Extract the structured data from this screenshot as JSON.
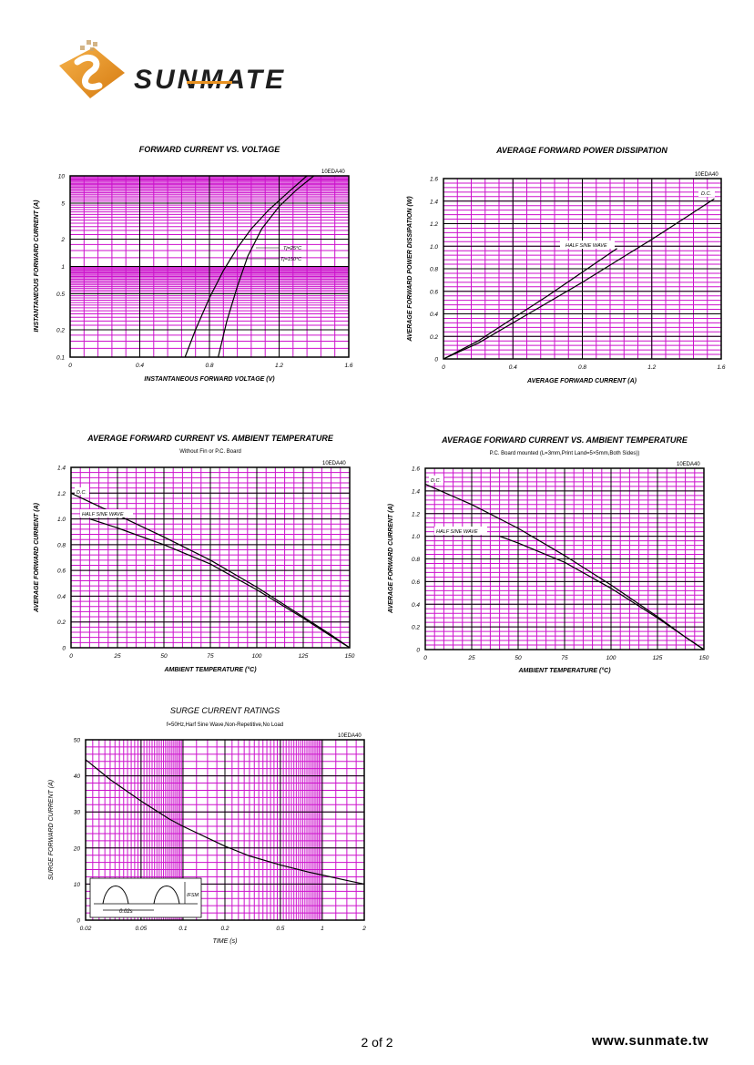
{
  "brand": {
    "name": "SUNMATE",
    "colors": {
      "orange": "#e89120",
      "dark": "#1e1e1e"
    }
  },
  "footer": {
    "page": "2 of 2",
    "site": "www.sunmate.tw"
  },
  "colors": {
    "grid": "#cc11cc",
    "major": "#000000",
    "curve": "#000000"
  },
  "chart_data": [
    {
      "type": "line",
      "title": "FORWARD CURRENT VS. VOLTAGE",
      "subtitle": "",
      "part": "10EDA40",
      "xlabel": "INSTANTANEOUS FORWARD VOLTAGE (V)",
      "ylabel": "INSTANTANEOUS FORWARD CURRENT (A)",
      "xscale": "linear",
      "yscale": "log",
      "xlim": [
        0,
        1.6
      ],
      "ylim": [
        0.1,
        10
      ],
      "xticks": [
        0,
        0.4,
        0.8,
        1.2,
        1.6
      ],
      "xtick_labels": [
        "0",
        "0.4",
        "0.8",
        "1.2",
        "1.6"
      ],
      "yticks": [
        0.1,
        0.2,
        0.5,
        1,
        2,
        5,
        10
      ],
      "ytick_labels": [
        "0.1",
        "0.2",
        "0.5",
        "1",
        "2",
        "5",
        "10"
      ],
      "series": [
        {
          "name": "Tj=150°C",
          "x": [
            0.66,
            0.72,
            0.8,
            0.88,
            0.96,
            1.04,
            1.14,
            1.26,
            1.36
          ],
          "y": [
            0.1,
            0.2,
            0.45,
            0.9,
            1.6,
            2.6,
            4.2,
            6.8,
            10
          ]
        },
        {
          "name": "Tj=25°C",
          "x": [
            0.85,
            0.9,
            0.96,
            1.02,
            1.1,
            1.2,
            1.3,
            1.4
          ],
          "y": [
            0.1,
            0.25,
            0.6,
            1.3,
            2.6,
            4.6,
            7.0,
            10
          ]
        }
      ],
      "annotations": [
        "Tj=25°C",
        "Tj=150°C"
      ]
    },
    {
      "type": "line",
      "title": "AVERAGE FORWARD POWER DISSIPATION",
      "subtitle": "",
      "part": "10EDA40",
      "xlabel": "AVERAGE FORWARD CURRENT (A)",
      "ylabel": "AVERAGE FORWARD POWER DISSIPATION (W)",
      "xscale": "linear",
      "yscale": "linear",
      "xlim": [
        0,
        1.6
      ],
      "ylim": [
        0,
        1.6
      ],
      "xticks": [
        0,
        0.4,
        0.8,
        1.2,
        1.6
      ],
      "xtick_labels": [
        "0",
        "0.4",
        "0.8",
        "1.2",
        "1.6"
      ],
      "yticks": [
        0,
        0.2,
        0.4,
        0.6,
        0.8,
        1.0,
        1.2,
        1.4,
        1.6
      ],
      "ytick_labels": [
        "0",
        "0.2",
        "0.4",
        "0.6",
        "0.8",
        "1.0",
        "1.2",
        "1.4",
        "1.6"
      ],
      "series": [
        {
          "name": "HALF SINE WAVE",
          "x": [
            0,
            0.2,
            0.4,
            0.6,
            0.8,
            1.0
          ],
          "y": [
            0,
            0.16,
            0.36,
            0.56,
            0.77,
            0.98
          ]
        },
        {
          "name": "D.C.",
          "x": [
            0,
            0.2,
            0.4,
            0.6,
            0.8,
            1.0,
            1.2,
            1.4,
            1.56
          ],
          "y": [
            0,
            0.14,
            0.32,
            0.5,
            0.68,
            0.87,
            1.06,
            1.26,
            1.42
          ]
        }
      ],
      "annotations": [
        "HALF SINE WAVE",
        "D.C."
      ]
    },
    {
      "type": "line",
      "title": "AVERAGE FORWARD CURRENT VS. AMBIENT TEMPERATURE",
      "subtitle": "Without Fin or P.C. Board",
      "part": "10EDA40",
      "xlabel": "AMBIENT TEMPERATURE (°C)",
      "ylabel": "AVERAGE FORWARD CURRENT (A)",
      "xscale": "linear",
      "yscale": "linear",
      "xlim": [
        0,
        150
      ],
      "ylim": [
        0,
        1.4
      ],
      "xticks": [
        0,
        25,
        50,
        75,
        100,
        125,
        150
      ],
      "xtick_labels": [
        "0",
        "25",
        "50",
        "75",
        "100",
        "125",
        "150"
      ],
      "yticks": [
        0,
        0.2,
        0.4,
        0.6,
        0.8,
        1.0,
        1.2,
        1.4
      ],
      "ytick_labels": [
        "0",
        "0.2",
        "0.4",
        "0.6",
        "0.8",
        "1.0",
        "1.2",
        "1.4"
      ],
      "series": [
        {
          "name": "D.C.",
          "x": [
            0,
            25,
            50,
            75,
            100,
            125,
            140,
            150
          ],
          "y": [
            1.2,
            1.03,
            0.86,
            0.68,
            0.47,
            0.24,
            0.1,
            0
          ]
        },
        {
          "name": "HALF SINE WAVE",
          "x": [
            10,
            25,
            50,
            75,
            100,
            125,
            140,
            150
          ],
          "y": [
            1.0,
            0.93,
            0.8,
            0.65,
            0.45,
            0.23,
            0.09,
            0
          ]
        }
      ],
      "annotations": [
        "D.C.",
        "HALF SINE WAVE"
      ]
    },
    {
      "type": "line",
      "title": "AVERAGE FORWARD CURRENT VS. AMBIENT TEMPERATURE",
      "subtitle": "P.C. Board mounted (L=3mm,Print Land=5×5mm,Both Sides))",
      "part": "10EDA40",
      "xlabel": "AMBIENT TEMPERATURE (°C)",
      "ylabel": "AVERAGE FORWARD CURRENT (A)",
      "xscale": "linear",
      "yscale": "linear",
      "xlim": [
        0,
        150
      ],
      "ylim": [
        0,
        1.6
      ],
      "xticks": [
        0,
        25,
        50,
        75,
        100,
        125,
        150
      ],
      "xtick_labels": [
        "0",
        "25",
        "50",
        "75",
        "100",
        "125",
        "150"
      ],
      "yticks": [
        0,
        0.2,
        0.4,
        0.6,
        0.8,
        1.0,
        1.2,
        1.4,
        1.6
      ],
      "ytick_labels": [
        "0",
        "0.2",
        "0.4",
        "0.6",
        "0.8",
        "1.0",
        "1.2",
        "1.4",
        "1.6"
      ],
      "series": [
        {
          "name": "D.C.",
          "x": [
            0,
            25,
            50,
            75,
            100,
            125,
            140,
            150
          ],
          "y": [
            1.46,
            1.28,
            1.07,
            0.83,
            0.57,
            0.29,
            0.11,
            0
          ]
        },
        {
          "name": "HALF SINE WAVE",
          "x": [
            40,
            50,
            75,
            100,
            125,
            140,
            150
          ],
          "y": [
            1.0,
            0.94,
            0.77,
            0.54,
            0.28,
            0.11,
            0
          ]
        }
      ],
      "annotations": [
        "D.C.",
        "HALF SINE WAVE"
      ]
    },
    {
      "type": "line",
      "title": "SURGE CURRENT RATINGS",
      "subtitle": "f=50Hz,Harf Sine Wave,Non-Repetitive,No Load",
      "part": "10EDA40",
      "xlabel": "TIME (s)",
      "ylabel": "SURGE FORWARD CURRENT (A)",
      "xscale": "log",
      "yscale": "linear",
      "xlim": [
        0.02,
        2
      ],
      "ylim": [
        0,
        50
      ],
      "xticks": [
        0.02,
        0.05,
        0.1,
        0.2,
        0.5,
        1,
        2
      ],
      "xtick_labels": [
        "0.02",
        "0.05",
        "0.1",
        "0.2",
        "0.5",
        "1",
        "2"
      ],
      "yticks": [
        0,
        10,
        20,
        30,
        40,
        50
      ],
      "ytick_labels": [
        "0",
        "10",
        "20",
        "30",
        "40",
        "50"
      ],
      "series": [
        {
          "name": "",
          "x": [
            0.02,
            0.03,
            0.05,
            0.08,
            0.1,
            0.2,
            0.3,
            0.5,
            0.8,
            1,
            1.5,
            2
          ],
          "y": [
            44.5,
            39,
            33,
            28,
            26,
            20.5,
            17.8,
            15.3,
            13.3,
            12.5,
            11,
            10
          ]
        }
      ],
      "inset": {
        "period_label": "0.02s",
        "peak_label": "IFSM"
      }
    }
  ]
}
